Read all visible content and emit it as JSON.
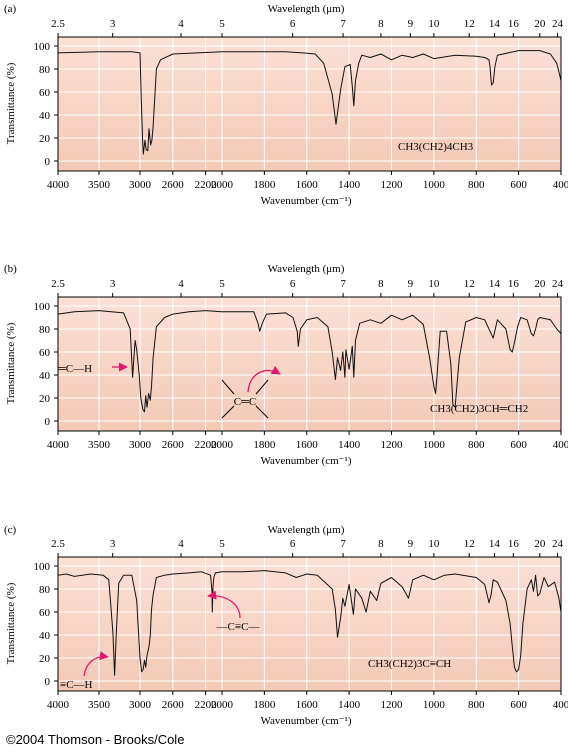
{
  "copyright": "©2004 Thomson - Brooks/Cole",
  "colors": {
    "plot_bg_top": "#fbe0d6",
    "plot_bg_bottom": "#f3c9b6",
    "grid": "#ffffff",
    "trace": "#111111",
    "arrow": "#e0196b"
  },
  "chart_data": [
    {
      "type": "line",
      "panel_label": "(a)",
      "top_axis_label": "Wavelength (μm)",
      "top_ticks": [
        "2.5",
        "3",
        "4",
        "5",
        "6",
        "7",
        "8",
        "9",
        "10",
        "12",
        "14",
        "16",
        "20",
        "24"
      ],
      "xlabel": "Wavenumber (cm⁻¹)",
      "ylabel": "Transmittance (%)",
      "x_ticks": [
        "4000",
        "3500",
        "3000",
        "2600",
        "2200",
        "2000",
        "1800",
        "1600",
        "1400",
        "1200",
        "1000",
        "800",
        "600",
        "400"
      ],
      "y_ticks": [
        "0",
        "20",
        "40",
        "60",
        "80",
        "100"
      ],
      "ylim": [
        0,
        100
      ],
      "grid": true,
      "compound": "CH3(CH2)4CH3",
      "annotations": [],
      "series": [
        {
          "x": [
            4000,
            3500,
            3100,
            3000,
            2985,
            2970,
            2960,
            2940,
            2925,
            2905,
            2890,
            2870,
            2855,
            2840,
            2800,
            2750,
            2600,
            2000,
            1700,
            1620,
            1560,
            1520,
            1480,
            1462,
            1440,
            1420,
            1395,
            1385,
            1378,
            1370,
            1355,
            1340,
            1300,
            1250,
            1200,
            1150,
            1100,
            1050,
            1000,
            900,
            800,
            760,
            740,
            735,
            728,
            720,
            712,
            700,
            600,
            500,
            450,
            420,
            400
          ],
          "y": [
            94,
            95,
            95,
            94,
            55,
            20,
            6,
            18,
            10,
            9,
            28,
            14,
            18,
            30,
            80,
            88,
            93,
            95,
            95,
            94,
            93,
            85,
            58,
            32,
            62,
            82,
            84,
            65,
            48,
            70,
            85,
            92,
            90,
            93,
            88,
            92,
            90,
            93,
            89,
            92,
            91,
            90,
            88,
            82,
            66,
            68,
            82,
            92,
            96,
            96,
            93,
            85,
            70
          ]
        }
      ]
    },
    {
      "type": "line",
      "panel_label": "(b)",
      "top_axis_label": "Wavelength (μm)",
      "top_ticks": [
        "2.5",
        "3",
        "4",
        "5",
        "6",
        "7",
        "8",
        "9",
        "10",
        "12",
        "14",
        "16",
        "20",
        "24"
      ],
      "xlabel": "Wavenumber (cm⁻¹)",
      "ylabel": "Transmittance (%)",
      "x_ticks": [
        "4000",
        "3500",
        "3000",
        "2600",
        "2200",
        "2000",
        "1800",
        "1600",
        "1400",
        "1200",
        "1000",
        "800",
        "600",
        "400"
      ],
      "y_ticks": [
        "0",
        "20",
        "40",
        "60",
        "80",
        "100"
      ],
      "ylim": [
        0,
        100
      ],
      "grid": true,
      "compound": "CH3(CH2)3CH═CH2",
      "annotations": [
        "═C—H",
        "C═C"
      ],
      "series": [
        {
          "x": [
            4000,
            3800,
            3500,
            3200,
            3120,
            3090,
            3075,
            3060,
            3040,
            3010,
            2990,
            2965,
            2945,
            2930,
            2915,
            2895,
            2875,
            2860,
            2840,
            2800,
            2700,
            2600,
            2400,
            2200,
            2000,
            1850,
            1830,
            1822,
            1810,
            1790,
            1700,
            1665,
            1645,
            1640,
            1630,
            1600,
            1550,
            1500,
            1480,
            1465,
            1455,
            1440,
            1430,
            1420,
            1415,
            1400,
            1385,
            1378,
            1370,
            1350,
            1300,
            1250,
            1200,
            1150,
            1100,
            1050,
            1020,
            1000,
            992,
            985,
            970,
            940,
            920,
            910,
            900,
            880,
            850,
            800,
            760,
            730,
            720,
            700,
            660,
            640,
            630,
            620,
            605,
            590,
            560,
            540,
            530,
            520,
            510,
            500,
            450,
            420,
            400
          ],
          "y": [
            93,
            95,
            96,
            94,
            80,
            38,
            55,
            70,
            62,
            40,
            20,
            10,
            8,
            22,
            12,
            24,
            18,
            30,
            55,
            82,
            90,
            93,
            95,
            96,
            95,
            95,
            85,
            78,
            85,
            93,
            94,
            90,
            78,
            65,
            80,
            88,
            90,
            82,
            60,
            36,
            55,
            44,
            60,
            38,
            62,
            45,
            65,
            38,
            70,
            85,
            88,
            85,
            92,
            88,
            92,
            84,
            55,
            30,
            24,
            40,
            78,
            78,
            50,
            14,
            12,
            55,
            86,
            90,
            88,
            76,
            72,
            88,
            80,
            62,
            60,
            68,
            82,
            90,
            88,
            76,
            74,
            80,
            88,
            90,
            88,
            80,
            76
          ]
        }
      ]
    },
    {
      "type": "line",
      "panel_label": "(c)",
      "top_axis_label": "Wavelength (μm)",
      "top_ticks": [
        "2.5",
        "3",
        "4",
        "5",
        "6",
        "7",
        "8",
        "9",
        "10",
        "12",
        "14",
        "16",
        "20",
        "24"
      ],
      "xlabel": "Wavenumber (cm⁻¹)",
      "ylabel": "Transmittance (%)",
      "x_ticks": [
        "4000",
        "3500",
        "3000",
        "2600",
        "2200",
        "2000",
        "1800",
        "1600",
        "1400",
        "1200",
        "1000",
        "800",
        "600",
        "400"
      ],
      "y_ticks": [
        "0",
        "20",
        "40",
        "60",
        "80",
        "100"
      ],
      "ylim": [
        0,
        100
      ],
      "grid": true,
      "compound": "CH3(CH2)3C≡CH",
      "annotations": [
        "≡C—H",
        "—C≡C—"
      ],
      "series": [
        {
          "x": [
            4000,
            3900,
            3800,
            3600,
            3450,
            3380,
            3330,
            3310,
            3290,
            3260,
            3200,
            3100,
            3040,
            3000,
            2980,
            2962,
            2945,
            2930,
            2915,
            2890,
            2875,
            2860,
            2840,
            2800,
            2700,
            2600,
            2400,
            2250,
            2140,
            2122,
            2118,
            2110,
            2100,
            2080,
            2000,
            1900,
            1800,
            1700,
            1650,
            1600,
            1550,
            1480,
            1465,
            1455,
            1440,
            1430,
            1420,
            1400,
            1380,
            1370,
            1340,
            1320,
            1300,
            1270,
            1250,
            1200,
            1150,
            1120,
            1100,
            1050,
            1000,
            950,
            900,
            800,
            760,
            740,
            730,
            720,
            700,
            660,
            640,
            630,
            620,
            610,
            600,
            590,
            580,
            560,
            540,
            530,
            520,
            510,
            500,
            480,
            470,
            460,
            430,
            410,
            400
          ],
          "y": [
            92,
            93,
            91,
            93,
            92,
            88,
            42,
            5,
            40,
            85,
            92,
            92,
            70,
            20,
            8,
            10,
            18,
            12,
            22,
            30,
            40,
            62,
            75,
            90,
            92,
            93,
            94,
            95,
            92,
            78,
            60,
            82,
            90,
            94,
            95,
            95,
            96,
            94,
            90,
            93,
            92,
            80,
            62,
            38,
            55,
            72,
            65,
            84,
            58,
            80,
            72,
            60,
            78,
            70,
            85,
            90,
            82,
            72,
            88,
            92,
            88,
            92,
            93,
            90,
            84,
            68,
            75,
            88,
            86,
            70,
            50,
            30,
            12,
            8,
            10,
            22,
            50,
            80,
            88,
            78,
            92,
            74,
            76,
            90,
            86,
            82,
            86,
            72,
            60
          ]
        }
      ]
    }
  ]
}
